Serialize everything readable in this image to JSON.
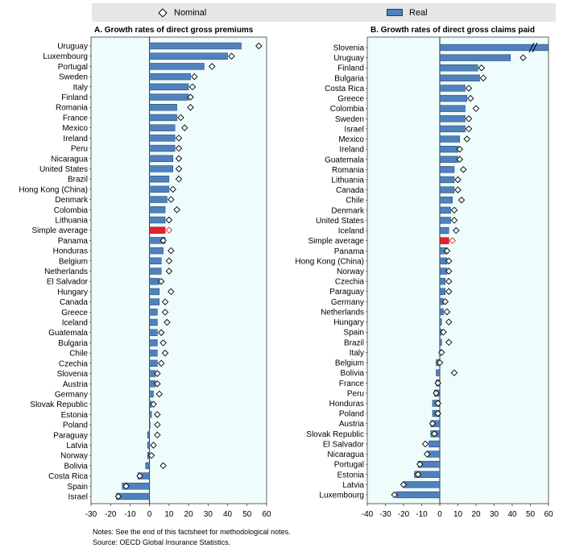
{
  "legend": {
    "nominal_label": "Nominal",
    "real_label": "Real"
  },
  "colors": {
    "real_bar": "#4f81bd",
    "highlight_bar": "#e8202a",
    "panel_background": "#eefcfc",
    "legend_background": "#e6e6e6"
  },
  "notes": {
    "line1": "Notes: See the end of this factsheet for methodological notes.",
    "line2": "Source: OECD Global Insurance Statistics."
  },
  "chart_data": [
    {
      "type": "bar",
      "orientation": "horizontal",
      "title": "A. Growth rates of direct gross premiums",
      "xlim": [
        -30,
        60
      ],
      "xticks": [
        -30,
        -20,
        -10,
        0,
        10,
        20,
        30,
        40,
        50,
        60
      ],
      "highlight": "Simple average",
      "categories": [
        "Uruguay",
        "Luxembourg",
        "Portugal",
        "Sweden",
        "Italy",
        "Finland",
        "Romania",
        "France",
        "Mexico",
        "Ireland",
        "Peru",
        "Nicaragua",
        "United States",
        "Brazil",
        "Hong Kong (China)",
        "Denmark",
        "Colombia",
        "Lithuania",
        "Simple average",
        "Panama",
        "Honduras",
        "Belgium",
        "Netherlands",
        "El Salvador",
        "Hungary",
        "Canada",
        "Greece",
        "Iceland",
        "Guatemala",
        "Bulgaria",
        "Chile",
        "Czechia",
        "Slovenia",
        "Austria",
        "Germany",
        "Slovak Republic",
        "Estonia",
        "Poland",
        "Paraguay",
        "Latvia",
        "Norway",
        "Bolivia",
        "Costa Rica",
        "Spain",
        "Israel"
      ],
      "series": [
        {
          "name": "Real",
          "values": [
            47,
            40,
            28,
            21,
            20,
            20,
            14,
            14,
            13,
            13,
            13,
            12,
            12,
            10,
            10,
            9,
            8,
            8,
            8,
            8,
            7,
            6,
            6,
            5,
            5,
            5,
            4,
            4,
            4,
            4,
            4,
            4,
            3,
            3,
            2,
            1,
            1,
            0,
            -1,
            -1,
            -1,
            -2,
            -6,
            -14,
            -17
          ]
        },
        {
          "name": "Nominal",
          "values": [
            56,
            42,
            32,
            23,
            22,
            21,
            21,
            16,
            18,
            15,
            15,
            15,
            15,
            15,
            12,
            11,
            14,
            10,
            10,
            7,
            11,
            10,
            10,
            6,
            11,
            8,
            8,
            9,
            6,
            7,
            8,
            6,
            4,
            4,
            5,
            2,
            4,
            4,
            4,
            2,
            1,
            7,
            -5,
            -12,
            -16
          ]
        }
      ]
    },
    {
      "type": "bar",
      "orientation": "horizontal",
      "title": "B. Growth rates of direct gross claims  paid",
      "xlim": [
        -40,
        60
      ],
      "xticks": [
        -40,
        -30,
        -20,
        -10,
        0,
        10,
        20,
        30,
        40,
        50,
        60
      ],
      "highlight": "Simple average",
      "axis_break": true,
      "categories": [
        "Slovenia",
        "Uruguay",
        "Finland",
        "Bulgaria",
        "Costa Rica",
        "Greece",
        "Colombia",
        "Sweden",
        "Israel",
        "Mexico",
        "Ireland",
        "Guatemala",
        "Romania",
        "Lithuania",
        "Canada",
        "Chile",
        "Denmark",
        "United States",
        "Iceland",
        "Simple average",
        "Panama",
        "Hong Kong (China)",
        "Norway",
        "Czechia",
        "Paraguay",
        "Germany",
        "Netherlands",
        "Hungary",
        "Spain",
        "Brazil",
        "Italy",
        "Belgium",
        "Bolivia",
        "France",
        "Peru",
        "Honduras",
        "Poland",
        "Austria",
        "Slovak Republic",
        "El Salvador",
        "Nicaragua",
        "Portugal",
        "Estonia",
        "Latvia",
        "Luxembourg"
      ],
      "series": [
        {
          "name": "Real",
          "values": [
            60,
            39,
            21,
            22,
            14,
            15,
            14,
            14,
            14,
            11,
            10,
            10,
            8,
            8,
            8,
            7,
            6,
            6,
            5,
            5,
            4,
            4,
            4,
            3,
            3,
            2,
            2,
            1,
            1,
            1,
            0,
            -2,
            -2,
            -2,
            -3,
            -4,
            -4,
            -5,
            -5,
            -6,
            -7,
            -12,
            -14,
            -20,
            -24
          ]
        },
        {
          "name": "Nominal",
          "values": [
            66,
            46,
            23,
            24,
            16,
            17,
            20,
            16,
            16,
            15,
            11,
            11,
            13,
            10,
            10,
            12,
            8,
            8,
            9,
            7,
            4,
            5,
            5,
            5,
            5,
            3,
            4,
            5,
            2,
            5,
            1,
            0,
            8,
            -1,
            -2,
            -1,
            -1,
            -4,
            -3,
            -8,
            -7,
            -11,
            -12,
            -20,
            -25
          ]
        }
      ]
    }
  ]
}
